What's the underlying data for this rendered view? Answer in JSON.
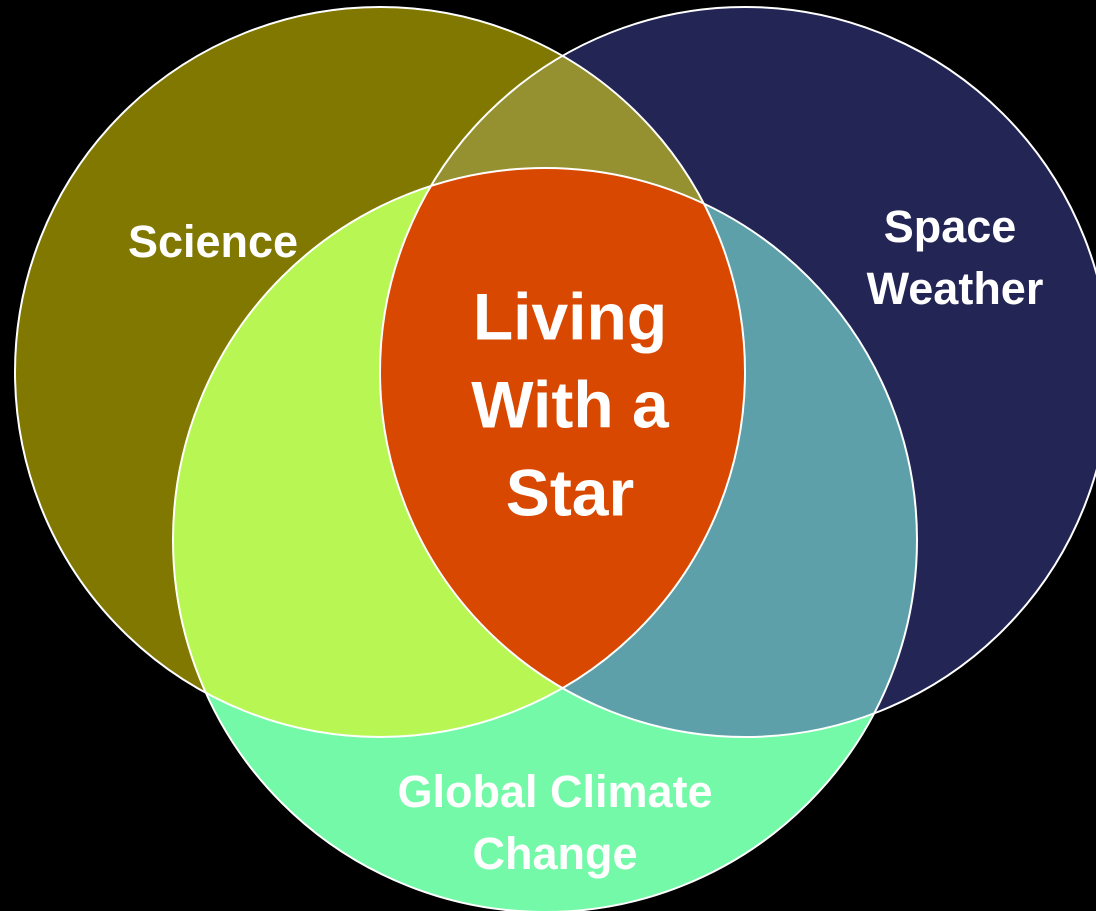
{
  "diagram": {
    "type": "venn",
    "circles": [
      {
        "label_lines": [
          "Science"
        ]
      },
      {
        "label_lines": [
          "Space",
          "Weather"
        ]
      },
      {
        "label_lines": [
          "Global Climate",
          "Change"
        ]
      }
    ],
    "center": {
      "label_lines": [
        "Living",
        "With a",
        "Star"
      ]
    }
  }
}
